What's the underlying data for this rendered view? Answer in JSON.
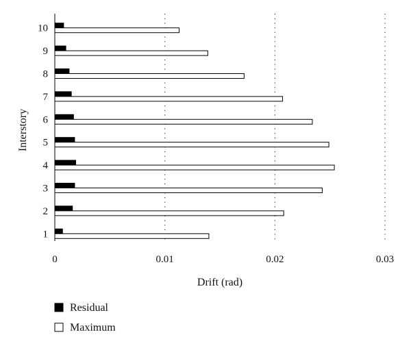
{
  "chart_data": {
    "type": "bar",
    "orientation": "horizontal",
    "categories": [
      "1",
      "2",
      "3",
      "4",
      "5",
      "6",
      "7",
      "8",
      "9",
      "10"
    ],
    "series": [
      {
        "name": "Residual",
        "color": "#000000",
        "values": [
          0.0007,
          0.0016,
          0.0018,
          0.0019,
          0.0018,
          0.0017,
          0.0015,
          0.0013,
          0.001,
          0.0008
        ]
      },
      {
        "name": "Maximum",
        "color": "#ffffff",
        "values": [
          0.014,
          0.0208,
          0.0243,
          0.0254,
          0.0249,
          0.0234,
          0.0207,
          0.0172,
          0.0139,
          0.0113
        ]
      }
    ],
    "x_ticks": [
      "0",
      "0.01",
      "0.02",
      "0.03"
    ],
    "xlim": [
      0,
      0.03
    ],
    "xlabel": "Drift (rad)",
    "ylabel": "Interstory",
    "grid": "vertical dotted",
    "legend_placement": "bottom-left"
  }
}
